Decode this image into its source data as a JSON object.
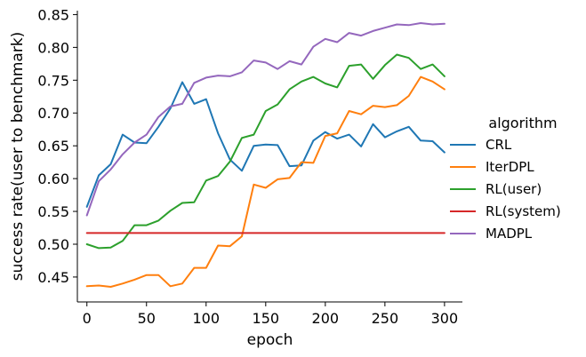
{
  "chart_data": {
    "type": "line",
    "xlabel": "epoch",
    "ylabel": "success rate(user to benchmark)",
    "xlim": [
      -8,
      315
    ],
    "ylim": [
      0.412,
      0.856
    ],
    "xticks": [
      0,
      50,
      100,
      150,
      200,
      250,
      300
    ],
    "yticks": [
      0.45,
      0.5,
      0.55,
      0.6,
      0.65,
      0.7,
      0.75,
      0.8,
      0.85
    ],
    "xtick_labels": [
      "0",
      "50",
      "100",
      "150",
      "200",
      "250",
      "300"
    ],
    "ytick_labels": [
      "0.45",
      "0.50",
      "0.55",
      "0.60",
      "0.65",
      "0.70",
      "0.75",
      "0.80",
      "0.85"
    ],
    "grid": false,
    "legend": {
      "title": "algorithm",
      "placement": "outside-right"
    },
    "x": [
      0,
      10,
      20,
      30,
      40,
      50,
      60,
      70,
      80,
      90,
      100,
      110,
      120,
      130,
      140,
      150,
      160,
      170,
      180,
      190,
      200,
      210,
      220,
      230,
      240,
      250,
      260,
      270,
      280,
      290,
      300
    ],
    "series": [
      {
        "name": "CRL",
        "color": "#1f77b4",
        "values": [
          0.557,
          0.605,
          0.622,
          0.667,
          0.655,
          0.654,
          0.679,
          0.707,
          0.747,
          0.714,
          0.721,
          0.669,
          0.629,
          0.612,
          0.65,
          0.652,
          0.651,
          0.619,
          0.62,
          0.658,
          0.671,
          0.661,
          0.667,
          0.649,
          0.683,
          0.663,
          0.672,
          0.679,
          0.658,
          0.657,
          0.64
        ]
      },
      {
        "name": "IterDPL",
        "color": "#ff7f0e",
        "values": [
          0.436,
          0.437,
          0.435,
          0.44,
          0.446,
          0.453,
          0.453,
          0.436,
          0.44,
          0.464,
          0.464,
          0.498,
          0.497,
          0.512,
          0.591,
          0.586,
          0.599,
          0.601,
          0.625,
          0.624,
          0.665,
          0.669,
          0.703,
          0.698,
          0.711,
          0.709,
          0.712,
          0.726,
          0.755,
          0.748,
          0.736
        ]
      },
      {
        "name": "RL(user)",
        "color": "#2ca02c",
        "values": [
          0.5,
          0.494,
          0.495,
          0.505,
          0.529,
          0.529,
          0.536,
          0.551,
          0.563,
          0.564,
          0.597,
          0.604,
          0.626,
          0.662,
          0.667,
          0.703,
          0.713,
          0.736,
          0.748,
          0.755,
          0.745,
          0.739,
          0.772,
          0.774,
          0.752,
          0.773,
          0.789,
          0.784,
          0.767,
          0.774,
          0.756
        ]
      },
      {
        "name": "RL(system)",
        "color": "#d62728",
        "values": [
          0.517,
          0.517,
          0.517,
          0.517,
          0.517,
          0.517,
          0.517,
          0.517,
          0.517,
          0.517,
          0.517,
          0.517,
          0.517,
          0.517,
          0.517,
          0.517,
          0.517,
          0.517,
          0.517,
          0.517,
          0.517,
          0.517,
          0.517,
          0.517,
          0.517,
          0.517,
          0.517,
          0.517,
          0.517,
          0.517,
          0.517
        ]
      },
      {
        "name": "MADPL",
        "color": "#9467bd",
        "values": [
          0.544,
          0.596,
          0.614,
          0.637,
          0.655,
          0.667,
          0.694,
          0.71,
          0.714,
          0.746,
          0.754,
          0.757,
          0.756,
          0.762,
          0.78,
          0.777,
          0.767,
          0.779,
          0.774,
          0.801,
          0.813,
          0.808,
          0.822,
          0.818,
          0.825,
          0.83,
          0.835,
          0.834,
          0.837,
          0.835,
          0.836
        ]
      }
    ]
  }
}
